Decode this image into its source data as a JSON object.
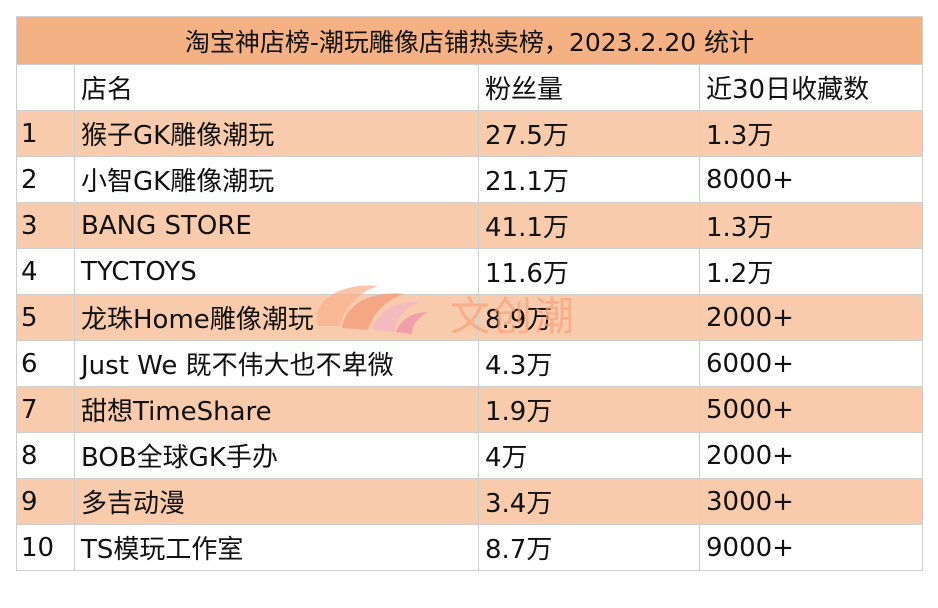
{
  "title": "淘宝神店榜-潮玩雕像店铺热卖榜，2023.2.20 统计",
  "headers": [
    "",
    "店名",
    "粉丝量",
    "近30日收藏数"
  ],
  "rows": [
    {
      "rank": "1",
      "name": "猴子GK雕像潮玩",
      "fans": "27.5万",
      "favorites": "1.3万"
    },
    {
      "rank": "2",
      "name": "小智GK雕像潮玩",
      "fans": "21.1万",
      "favorites": "8000+"
    },
    {
      "rank": "3",
      "name": "BANG STORE",
      "fans": "41.1万",
      "favorites": "1.3万"
    },
    {
      "rank": "4",
      "name": "TYCTOYS",
      "fans": "11.6万",
      "favorites": "1.2万"
    },
    {
      "rank": "5",
      "name": "龙珠Home雕像潮玩",
      "fans": "8.9万",
      "favorites": "2000+"
    },
    {
      "rank": "6",
      "name": "Just We 既不伟大也不卑微",
      "fans": "4.3万",
      "favorites": "6000+"
    },
    {
      "rank": "7",
      "name": "甜想TimeShare",
      "fans": "1.9万",
      "favorites": "5000+"
    },
    {
      "rank": "8",
      "name": "BOB全球GK手办",
      "fans": "4万",
      "favorites": "2000+"
    },
    {
      "rank": "9",
      "name": "多吉动漫",
      "fans": "3.4万",
      "favorites": "3000+"
    },
    {
      "rank": "10",
      "name": "TS模玩工作室",
      "fans": "8.7万",
      "favorites": "9000+"
    }
  ],
  "watermark": {
    "text": "文创潮",
    "icon": "wave-logo-icon"
  },
  "colors": {
    "title_bg": "#f4b183",
    "highlight_row": "#f8cbad",
    "border": "#cfcfcf",
    "watermark": "#f7a37c"
  }
}
